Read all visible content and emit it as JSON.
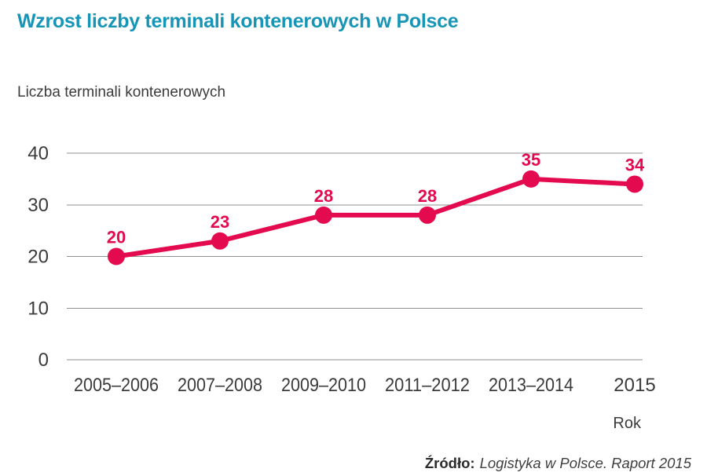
{
  "source": {
    "prefix": "Źródło:",
    "text": "Logistyka w Polsce. Raport 2015"
  },
  "colors": {
    "title": "#1795b6",
    "line": "#e40a4f",
    "grid": "#8f8f8f",
    "text": "#3b3b3b"
  },
  "chart_data": {
    "type": "line",
    "title": "Wzrost liczby terminali kontenerowych w Polsce",
    "ylabel": "Liczba terminali kontenerowych",
    "xlabel": "Rok",
    "categories": [
      "2005–2006",
      "2007–2008",
      "2009–2010",
      "2011–2012",
      "2013–2014",
      "2015"
    ],
    "values": [
      20,
      23,
      28,
      28,
      35,
      34
    ],
    "yticks": [
      0,
      10,
      20,
      30,
      40
    ],
    "ylim": [
      0,
      40
    ],
    "grid": true,
    "legend": false,
    "marker": "circle",
    "data_labels": true
  }
}
